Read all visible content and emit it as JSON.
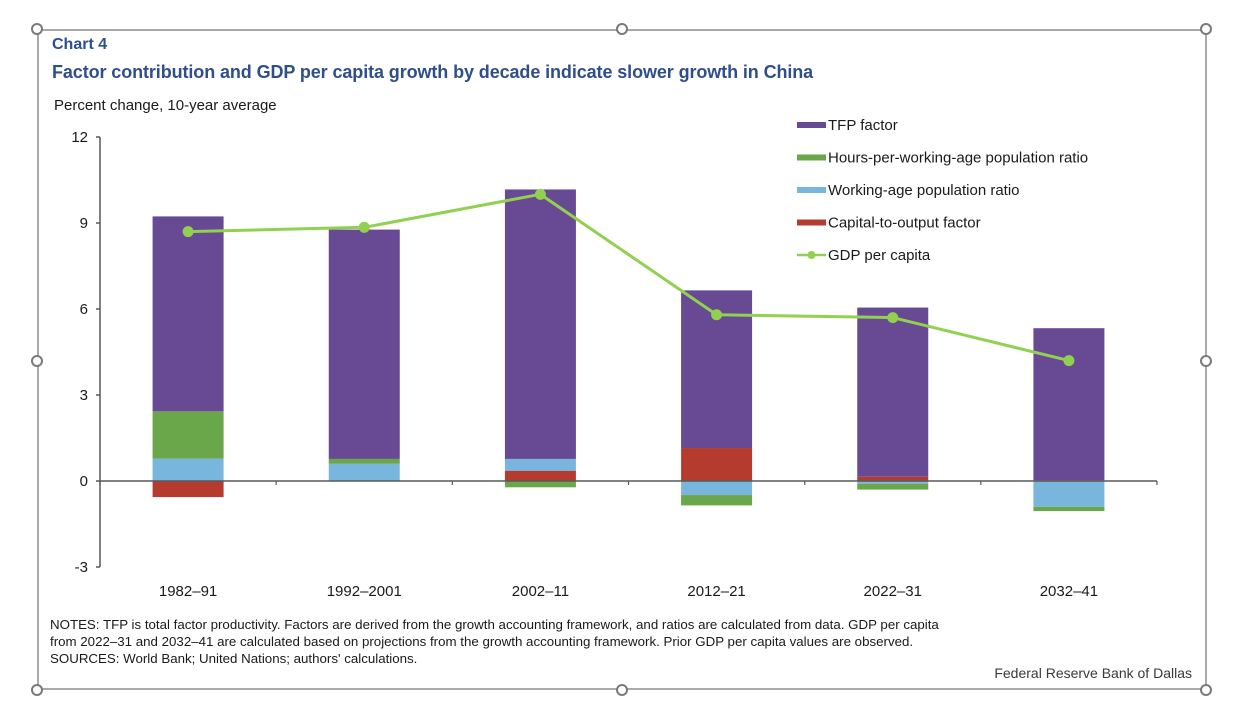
{
  "chart_label": "Chart 4",
  "title": "Factor contribution and GDP per capita growth by decade indicate slower growth in China",
  "notes": [
    "NOTES: TFP is total factor productivity. Factors are derived from the growth accounting framework, and ratios are calculated from data. GDP per capita",
    "from 2022–31 and 2032–41 are calculated based on projections from the growth accounting framework. Prior GDP per capita values are observed.",
    "SOURCES: World Bank; United Nations; authors' calculations."
  ],
  "credit": "Federal Reserve Bank of Dallas",
  "chart_data": {
    "type": "bar",
    "stacked": true,
    "title": "Factor contribution and GDP per capita growth by decade indicate slower growth in China",
    "ylabel": "Percent change, 10-year average",
    "xlabel": "",
    "ylim": [
      -3,
      12
    ],
    "yticks": [
      -3,
      0,
      3,
      6,
      9,
      12
    ],
    "grid": false,
    "legend_position": "top-right",
    "categories": [
      "1982–91",
      "1992–2001",
      "2002–11",
      "2012–21",
      "2022–31",
      "2032–41"
    ],
    "series": [
      {
        "name": "TFP factor",
        "kind": "bar",
        "color": "#674a93",
        "values": [
          6.8,
          8.0,
          9.4,
          5.5,
          5.9,
          5.3
        ]
      },
      {
        "name": "Hours-per-working-age population ratio",
        "kind": "bar",
        "color": "#6aa64a",
        "values": [
          1.65,
          0.17,
          -0.22,
          -0.36,
          -0.2,
          -0.15
        ]
      },
      {
        "name": "Working-age population ratio",
        "kind": "bar",
        "color": "#78b6dd",
        "values": [
          0.78,
          0.6,
          0.41,
          -0.49,
          -0.1,
          -0.9
        ]
      },
      {
        "name": "Capital-to-output factor",
        "kind": "bar",
        "color": "#b63b2f",
        "values": [
          -0.56,
          0.0,
          0.36,
          1.15,
          0.15,
          0.03
        ]
      },
      {
        "name": "GDP per capita",
        "kind": "line",
        "color": "#92d050",
        "values": [
          8.7,
          8.85,
          10.0,
          5.8,
          5.7,
          4.2
        ]
      }
    ]
  }
}
